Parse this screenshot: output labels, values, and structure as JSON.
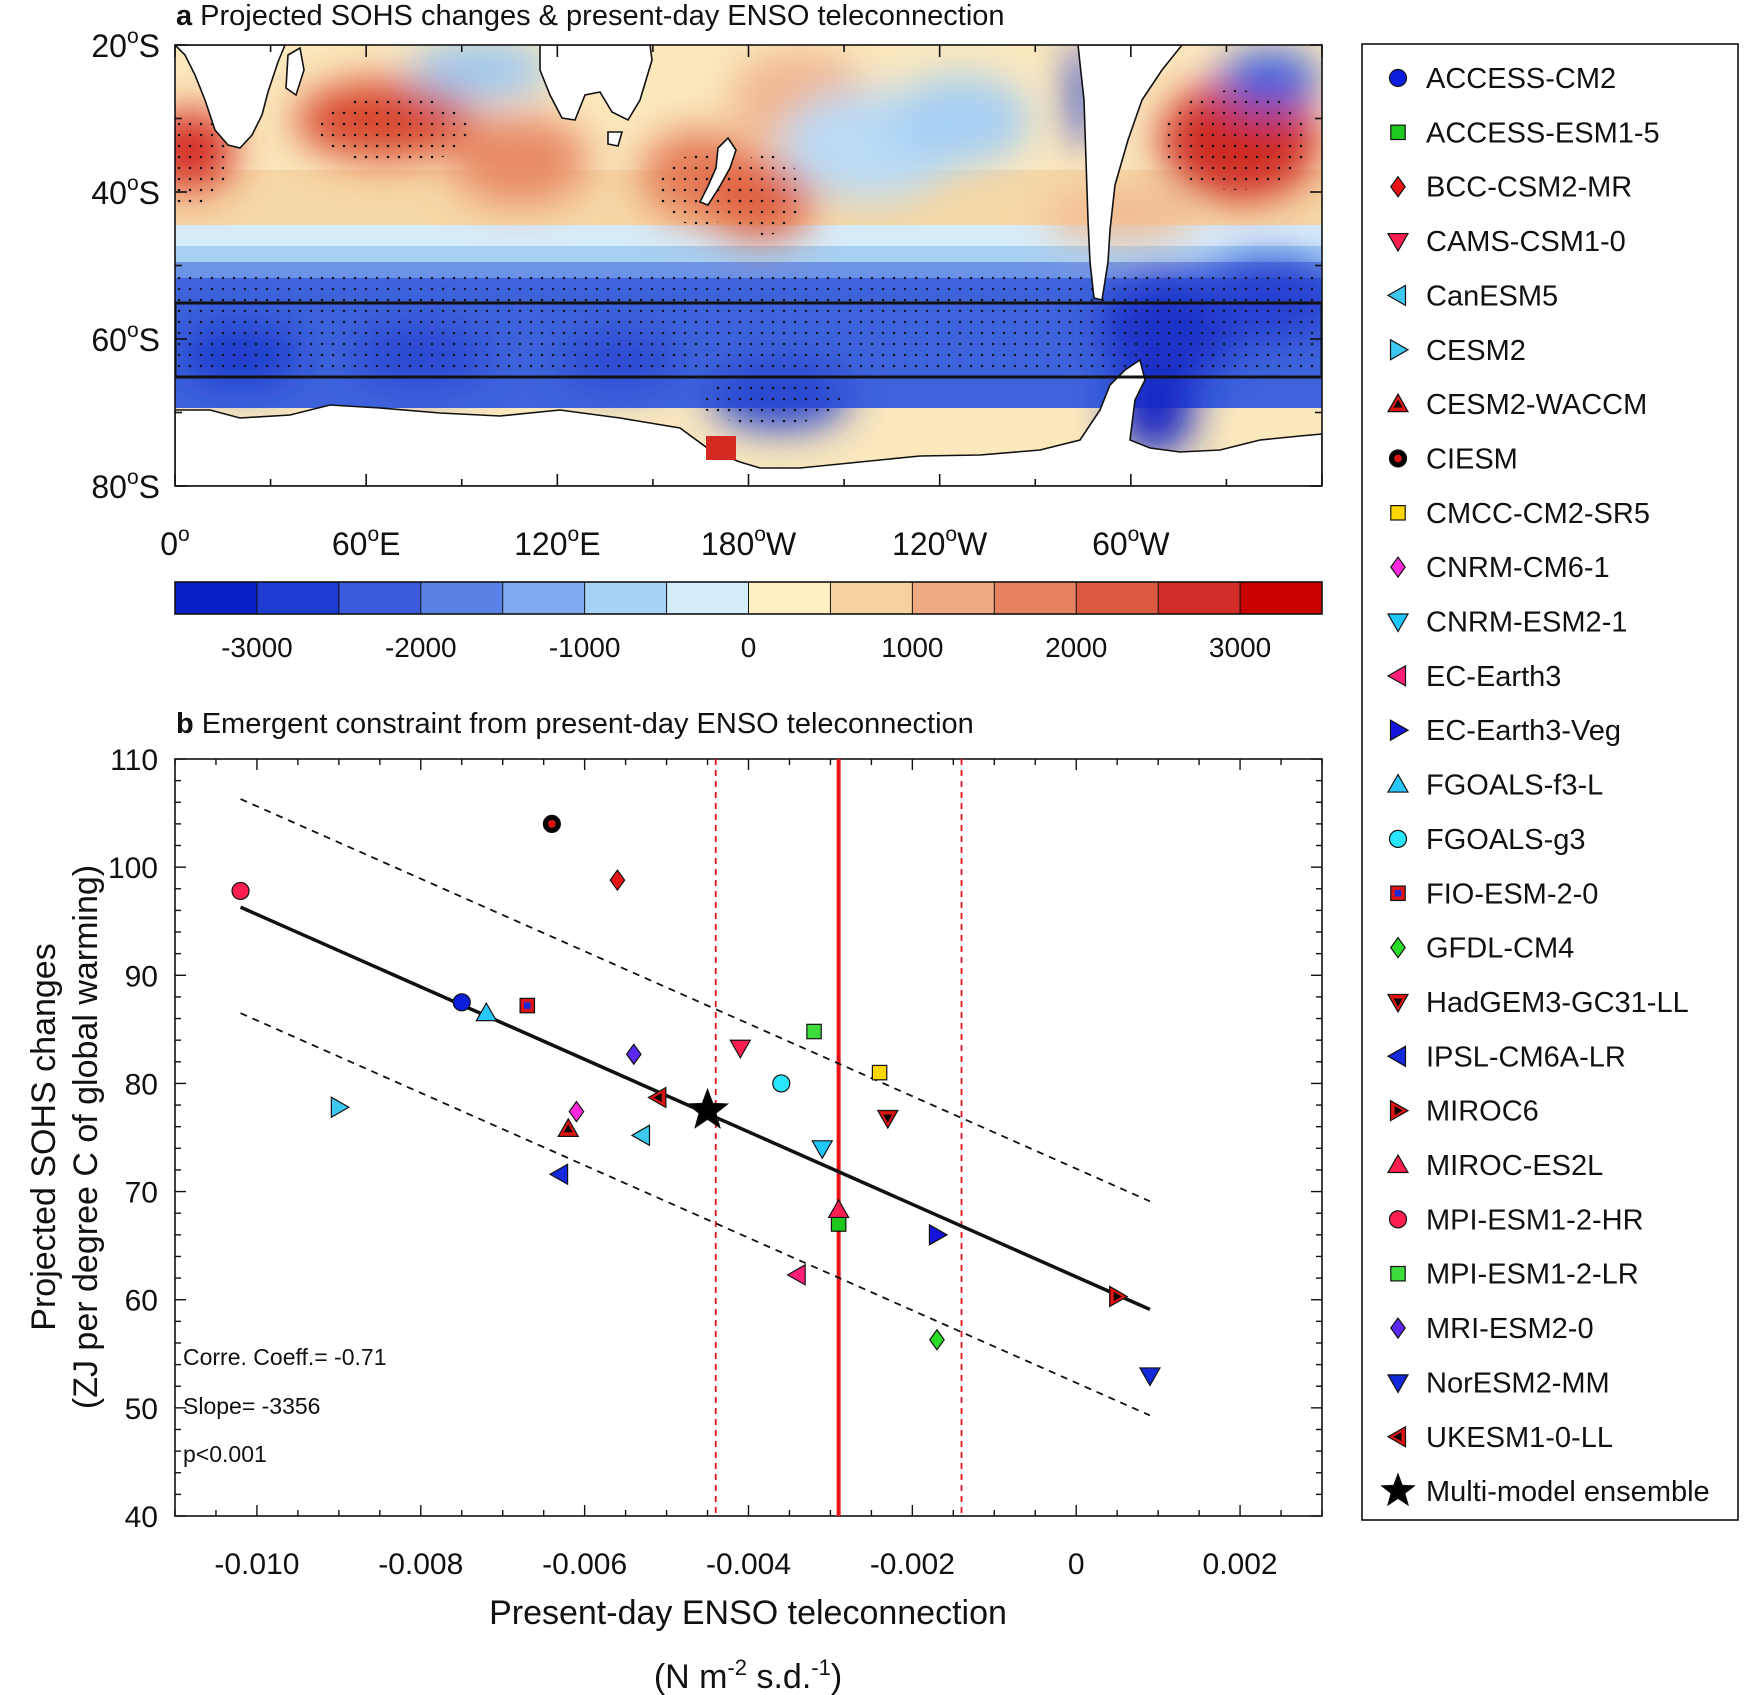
{
  "panel_a": {
    "letter": "a",
    "title": "Projected SOHS changes & present-day ENSO teleconnection",
    "lat_labels": [
      "20",
      "40",
      "60",
      "80"
    ],
    "lat_suffix": "S",
    "lon_labels": [
      {
        "num": "0",
        "dir": ""
      },
      {
        "num": "60",
        "dir": "E"
      },
      {
        "num": "120",
        "dir": "E"
      },
      {
        "num": "180",
        "dir": "W"
      },
      {
        "num": "120",
        "dir": "W"
      },
      {
        "num": "60",
        "dir": "W"
      }
    ],
    "lat_range": [
      -20,
      -80
    ],
    "lon_range": [
      0,
      360
    ],
    "box_lat": [
      -55,
      -65
    ],
    "colorbar": {
      "ticks": [
        "-3000",
        "-2000",
        "-1000",
        "0",
        "1000",
        "2000",
        "3000"
      ],
      "range": [
        -3500,
        3500
      ],
      "colors": [
        "#0a1ec8",
        "#1e3cd2",
        "#3c5adc",
        "#5a82e6",
        "#82aaf0",
        "#a5d2f5",
        "#d2ecfa",
        "#fff0c3",
        "#f5d2a0",
        "#f0aa82",
        "#e6825f",
        "#dc5a41",
        "#d22d28",
        "#c80000"
      ]
    }
  },
  "chart_data": {
    "type": "scatter",
    "letter": "b",
    "title": "Emergent constraint from present-day ENSO teleconnection",
    "xlabel": "Present-day ENSO teleconnection",
    "xunit": {
      "a": "(N m",
      "b": "-2",
      "c": " s.d.",
      "d": "-1",
      "e": ")"
    },
    "ylabel_line1": "Projected SOHS changes",
    "ylabel_line2": "(ZJ per degree C of global warming)",
    "xlim": [
      -0.011,
      0.003
    ],
    "ylim": [
      40,
      110
    ],
    "xticks": [
      -0.01,
      -0.008,
      -0.006,
      -0.004,
      -0.002,
      0,
      0.002
    ],
    "xtick_labels": [
      "-0.010",
      "-0.008",
      "-0.006",
      "-0.004",
      "-0.002",
      "0",
      "0.002"
    ],
    "yticks": [
      40,
      50,
      60,
      70,
      80,
      90,
      100,
      110
    ],
    "ytick_labels": [
      "40",
      "50",
      "60",
      "70",
      "80",
      "90",
      "100",
      "110"
    ],
    "stats": [
      "Corre. Coeff.= -0.71",
      "Slope= -3356",
      "p<0.001"
    ],
    "regression": {
      "x": [
        -0.0102,
        0.0009
      ],
      "y": [
        96.3,
        59.1
      ]
    },
    "upper_bound": {
      "x": [
        -0.0102,
        0.0009
      ],
      "y": [
        106.3,
        69.1
      ]
    },
    "lower_bound": {
      "x": [
        -0.0102,
        0.0009
      ],
      "y": [
        86.5,
        49.3
      ]
    },
    "constraint_x": -0.0029,
    "constraint_range": [
      -0.0044,
      -0.0014
    ],
    "models": [
      {
        "name": "ACCESS-CM2",
        "x": -0.0075,
        "y": 87.5,
        "marker": "circle",
        "color": "#0a1edc"
      },
      {
        "name": "ACCESS-ESM1-5",
        "x": -0.0029,
        "y": 67.0,
        "marker": "square",
        "color": "#1ec81e"
      },
      {
        "name": "BCC-CSM2-MR",
        "x": -0.0056,
        "y": 98.8,
        "marker": "diamond",
        "color": "#e61414"
      },
      {
        "name": "CAMS-CSM1-0",
        "x": -0.0041,
        "y": 83.3,
        "marker": "tri-down",
        "color": "#ff1e50"
      },
      {
        "name": "CanESM5",
        "x": -0.0053,
        "y": 75.2,
        "marker": "tri-left",
        "color": "#3cc8f0"
      },
      {
        "name": "CESM2",
        "x": -0.009,
        "y": 77.8,
        "marker": "tri-right",
        "color": "#3cc8f0"
      },
      {
        "name": "CESM2-WACCM",
        "x": -0.0062,
        "y": 75.8,
        "marker": "tri-up",
        "color": "#dc1414",
        "half": "#000000"
      },
      {
        "name": "CIESM",
        "x": -0.0064,
        "y": 104.0,
        "marker": "circle",
        "color": "#000000",
        "half": "#dc1414"
      },
      {
        "name": "CMCC-CM2-SR5",
        "x": -0.0024,
        "y": 81.0,
        "marker": "square",
        "color": "#ffd700"
      },
      {
        "name": "CNRM-CM6-1",
        "x": -0.0061,
        "y": 77.4,
        "marker": "diamond",
        "color": "#ff28dc"
      },
      {
        "name": "CNRM-ESM2-1",
        "x": -0.0031,
        "y": 74.0,
        "marker": "tri-down",
        "color": "#1ec8ff"
      },
      {
        "name": "EC-Earth3",
        "x": -0.0034,
        "y": 62.3,
        "marker": "tri-left",
        "color": "#ff1e78"
      },
      {
        "name": "EC-Earth3-Veg",
        "x": -0.0017,
        "y": 66.0,
        "marker": "tri-right",
        "color": "#1414dc"
      },
      {
        "name": "FGOALS-f3-L",
        "x": -0.0072,
        "y": 86.5,
        "marker": "tri-up",
        "color": "#28c8ff"
      },
      {
        "name": "FGOALS-g3",
        "x": -0.0036,
        "y": 80.0,
        "marker": "circle",
        "color": "#28e6ff"
      },
      {
        "name": "FIO-ESM-2-0",
        "x": -0.0067,
        "y": 87.2,
        "marker": "square",
        "color": "#dc1414",
        "half": "#1428dc"
      },
      {
        "name": "GFDL-CM4",
        "x": -0.0017,
        "y": 56.3,
        "marker": "diamond",
        "color": "#28dc28"
      },
      {
        "name": "HadGEM3-GC31-LL",
        "x": -0.0023,
        "y": 76.8,
        "marker": "tri-down",
        "color": "#dc1414",
        "half": "#000000"
      },
      {
        "name": "IPSL-CM6A-LR",
        "x": -0.0063,
        "y": 71.6,
        "marker": "tri-left",
        "color": "#1428dc"
      },
      {
        "name": "MIROC6",
        "x": 0.0005,
        "y": 60.3,
        "marker": "tri-right",
        "color": "#dc1414",
        "half": "#000000"
      },
      {
        "name": "MIROC-ES2L",
        "x": -0.0029,
        "y": 68.3,
        "marker": "tri-up",
        "color": "#ff1e50"
      },
      {
        "name": "MPI-ESM1-2-HR",
        "x": -0.0102,
        "y": 97.8,
        "marker": "circle",
        "color": "#ff1e50"
      },
      {
        "name": "MPI-ESM1-2-LR",
        "x": -0.0032,
        "y": 84.8,
        "marker": "square",
        "color": "#3cdc3c"
      },
      {
        "name": "MRI-ESM2-0",
        "x": -0.0054,
        "y": 82.7,
        "marker": "diamond",
        "color": "#5a28f0"
      },
      {
        "name": "NorESM2-MM",
        "x": 0.0009,
        "y": 53.0,
        "marker": "tri-down",
        "color": "#1428dc"
      },
      {
        "name": "UKESM1-0-LL",
        "x": -0.0051,
        "y": 78.7,
        "marker": "tri-left",
        "color": "#dc1414",
        "half": "#000000"
      }
    ],
    "ensemble": {
      "name": "Multi-model ensemble",
      "x": -0.0045,
      "y": 77.5,
      "marker": "star",
      "color": "#000000"
    }
  }
}
